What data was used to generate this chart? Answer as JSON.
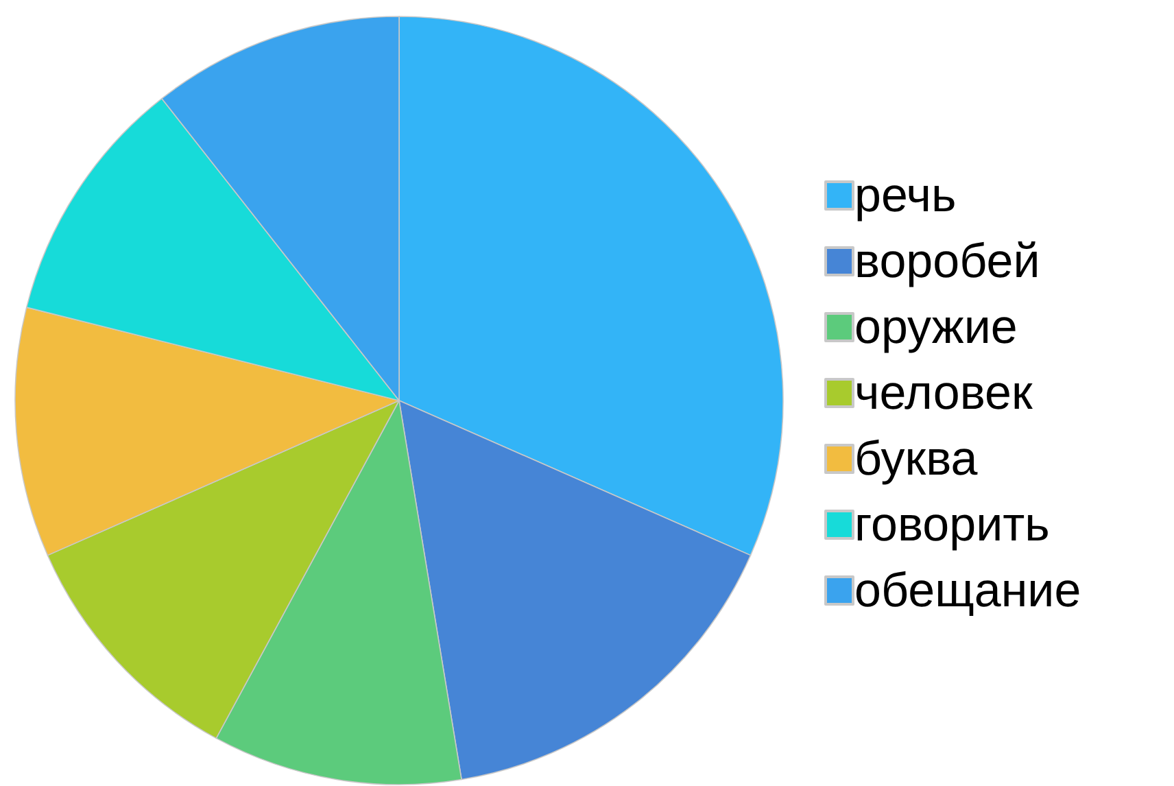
{
  "chart_data": {
    "type": "pie",
    "categories": [
      "речь",
      "воробей",
      "оружие",
      "человек",
      "буква",
      "говорить",
      "обещание"
    ],
    "values": [
      31.6,
      15.8,
      10.5,
      10.5,
      10.5,
      10.5,
      10.6
    ],
    "colors": [
      "#33b4f7",
      "#4685d6",
      "#5ccb7c",
      "#a8cb2d",
      "#f2bc40",
      "#17dbd9",
      "#3aa3ee"
    ],
    "legend": "right"
  }
}
